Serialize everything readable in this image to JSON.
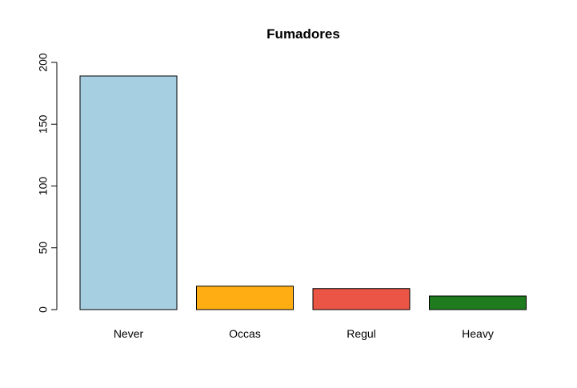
{
  "chart_data": {
    "type": "bar",
    "title": "Fumadores",
    "xlabel": "",
    "ylabel": "",
    "categories": [
      "Never",
      "Occas",
      "Regul",
      "Heavy"
    ],
    "values": [
      189,
      19,
      17,
      11
    ],
    "colors": [
      "#a6d0e2",
      "#ffad12",
      "#ea5545",
      "#1e7b1e"
    ],
    "ylim": [
      0,
      200
    ],
    "yticks": [
      0,
      50,
      100,
      150,
      200
    ],
    "grid": false,
    "legend": "none"
  }
}
